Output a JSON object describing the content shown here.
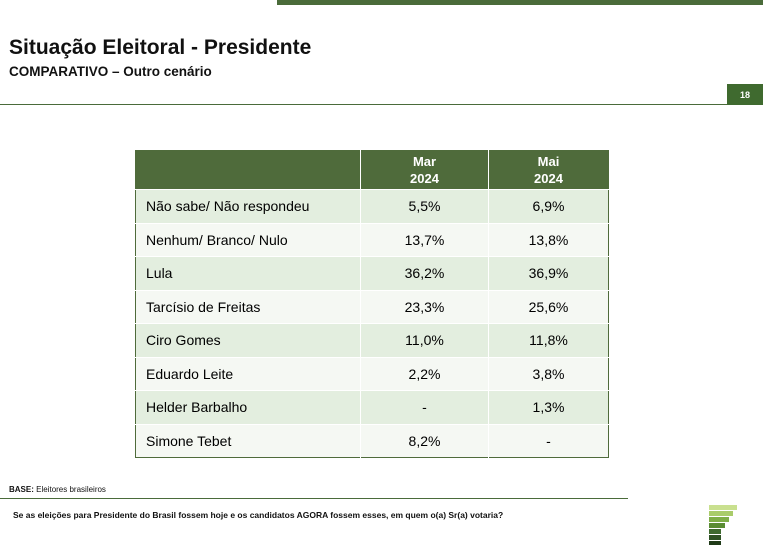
{
  "header": {
    "title": "Situação Eleitoral - Presidente",
    "subtitle": "COMPARATIVO – Outro cenário",
    "page_number": "18"
  },
  "table": {
    "columns": [
      {
        "month": "Mar",
        "year": "2024"
      },
      {
        "month": "Mai",
        "year": "2024"
      }
    ],
    "rows": [
      {
        "label": "Não sabe/ Não respondeu",
        "mar": "5,5%",
        "mai": "6,9%"
      },
      {
        "label": "Nenhum/ Branco/ Nulo",
        "mar": "13,7%",
        "mai": "13,8%"
      },
      {
        "label": "Lula",
        "mar": "36,2%",
        "mai": "36,9%"
      },
      {
        "label": "Tarcísio de Freitas",
        "mar": "23,3%",
        "mai": "25,6%"
      },
      {
        "label": "Ciro Gomes",
        "mar": "11,0%",
        "mai": "11,8%"
      },
      {
        "label": "Eduardo Leite",
        "mar": "2,2%",
        "mai": "3,8%"
      },
      {
        "label": "Helder Barbalho",
        "mar": "-",
        "mai": "1,3%"
      },
      {
        "label": "Simone Tebet",
        "mar": "8,2%",
        "mai": "-"
      }
    ]
  },
  "footer": {
    "base_label": "BASE:",
    "base_text": "Eleitores brasileiros",
    "question": "Se as eleições para Presidente do Brasil fossem hoje e os candidatos AGORA fossem esses, em quem o(a) Sr(a) votaria?"
  },
  "colors": {
    "brand_green": "#4f6b3b",
    "row_odd": "#e3eedf",
    "row_even": "#f5f8f3"
  }
}
